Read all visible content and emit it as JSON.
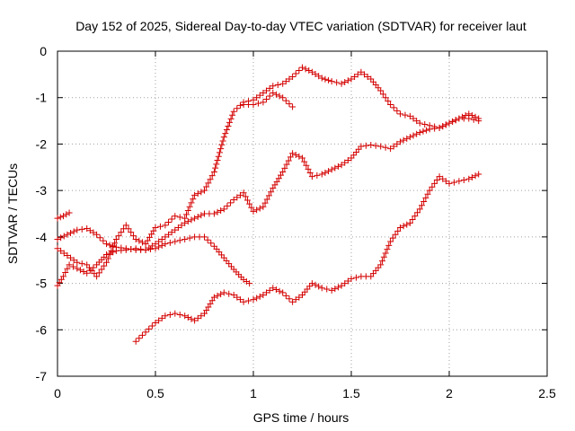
{
  "chart_data": {
    "type": "scatter",
    "title": "Day 152 of 2025, Sidereal Day-to-day VTEC variation (SDTVAR) for receiver laut",
    "xlabel": "GPS time / hours",
    "ylabel": "SDTVAR / TECUs",
    "xlim": [
      0,
      2.5
    ],
    "ylim": [
      -7,
      0
    ],
    "xticks": [
      "0",
      "0.5",
      "1",
      "1.5",
      "2",
      "2.5"
    ],
    "yticks": [
      "0",
      "-1",
      "-2",
      "-3",
      "-4",
      "-5",
      "-6",
      "-7"
    ],
    "grid": true,
    "marker": "+",
    "color": "#d40000",
    "series": [
      {
        "name": "series-1",
        "points": [
          [
            0.0,
            -3.6
          ],
          [
            0.03,
            -3.55
          ],
          [
            0.06,
            -3.48
          ]
        ]
      },
      {
        "name": "series-2",
        "points": [
          [
            0.0,
            -5.05
          ],
          [
            0.03,
            -4.85
          ],
          [
            0.06,
            -4.6
          ],
          [
            0.1,
            -4.68
          ],
          [
            0.15,
            -4.78
          ],
          [
            0.2,
            -4.6
          ],
          [
            0.25,
            -4.38
          ],
          [
            0.3,
            -4.3
          ],
          [
            0.35,
            -4.28
          ],
          [
            0.4,
            -4.25
          ],
          [
            0.45,
            -4.28
          ],
          [
            0.5,
            -4.25
          ],
          [
            0.55,
            -4.15
          ],
          [
            0.6,
            -4.1
          ],
          [
            0.65,
            -4.05
          ],
          [
            0.7,
            -4.0
          ],
          [
            0.75,
            -4.0
          ],
          [
            0.8,
            -4.2
          ],
          [
            0.85,
            -4.45
          ],
          [
            0.9,
            -4.7
          ],
          [
            0.95,
            -4.92
          ],
          [
            0.98,
            -5.0
          ]
        ]
      },
      {
        "name": "series-3",
        "points": [
          [
            0.0,
            -4.05
          ],
          [
            0.05,
            -3.95
          ],
          [
            0.1,
            -3.85
          ],
          [
            0.15,
            -3.82
          ],
          [
            0.2,
            -3.95
          ],
          [
            0.25,
            -4.15
          ],
          [
            0.3,
            -4.22
          ],
          [
            0.35,
            -4.25
          ],
          [
            0.4,
            -4.28
          ],
          [
            0.45,
            -4.28
          ],
          [
            0.5,
            -4.15
          ],
          [
            0.55,
            -4.0
          ],
          [
            0.6,
            -3.85
          ],
          [
            0.65,
            -3.7
          ],
          [
            0.7,
            -3.6
          ],
          [
            0.75,
            -3.5
          ],
          [
            0.8,
            -3.5
          ],
          [
            0.85,
            -3.4
          ],
          [
            0.9,
            -3.2
          ],
          [
            0.95,
            -3.05
          ],
          [
            1.0,
            -3.45
          ],
          [
            1.05,
            -3.35
          ],
          [
            1.1,
            -2.95
          ],
          [
            1.15,
            -2.6
          ],
          [
            1.2,
            -2.2
          ],
          [
            1.25,
            -2.3
          ],
          [
            1.3,
            -2.7
          ],
          [
            1.35,
            -2.65
          ],
          [
            1.4,
            -2.55
          ],
          [
            1.45,
            -2.45
          ],
          [
            1.5,
            -2.3
          ],
          [
            1.55,
            -2.05
          ],
          [
            1.6,
            -2.02
          ],
          [
            1.65,
            -2.05
          ],
          [
            1.7,
            -2.1
          ],
          [
            1.75,
            -1.95
          ],
          [
            1.8,
            -1.85
          ],
          [
            1.85,
            -1.75
          ],
          [
            1.9,
            -1.68
          ],
          [
            1.95,
            -1.65
          ],
          [
            2.0,
            -1.55
          ],
          [
            2.05,
            -1.45
          ],
          [
            2.1,
            -1.35
          ],
          [
            2.15,
            -1.45
          ]
        ]
      },
      {
        "name": "series-4",
        "points": [
          [
            0.0,
            -4.25
          ],
          [
            0.05,
            -4.4
          ],
          [
            0.1,
            -4.55
          ],
          [
            0.15,
            -4.6
          ],
          [
            0.2,
            -4.85
          ],
          [
            0.25,
            -4.55
          ],
          [
            0.3,
            -4.05
          ],
          [
            0.35,
            -3.75
          ],
          [
            0.4,
            -4.05
          ],
          [
            0.45,
            -4.15
          ],
          [
            0.5,
            -3.8
          ],
          [
            0.55,
            -3.75
          ],
          [
            0.6,
            -3.55
          ],
          [
            0.65,
            -3.6
          ],
          [
            0.7,
            -3.1
          ],
          [
            0.75,
            -3.0
          ],
          [
            0.8,
            -2.6
          ],
          [
            0.85,
            -1.85
          ],
          [
            0.9,
            -1.3
          ],
          [
            0.95,
            -1.1
          ],
          [
            1.0,
            -1.05
          ],
          [
            1.05,
            -0.9
          ],
          [
            1.1,
            -0.75
          ],
          [
            1.15,
            -0.7
          ],
          [
            1.2,
            -0.55
          ],
          [
            1.25,
            -0.35
          ],
          [
            1.3,
            -0.45
          ],
          [
            1.35,
            -0.58
          ],
          [
            1.4,
            -0.65
          ],
          [
            1.45,
            -0.7
          ],
          [
            1.5,
            -0.6
          ],
          [
            1.55,
            -0.45
          ],
          [
            1.6,
            -0.6
          ],
          [
            1.65,
            -0.85
          ],
          [
            1.7,
            -1.15
          ],
          [
            1.75,
            -1.35
          ],
          [
            1.8,
            -1.4
          ],
          [
            1.85,
            -1.55
          ],
          [
            1.9,
            -1.6
          ],
          [
            1.95,
            -1.65
          ],
          [
            2.0,
            -1.55
          ],
          [
            2.05,
            -1.45
          ],
          [
            2.1,
            -1.45
          ],
          [
            2.15,
            -1.5
          ]
        ]
      },
      {
        "name": "series-5",
        "points": [
          [
            0.95,
            -1.15
          ],
          [
            1.0,
            -1.15
          ],
          [
            1.05,
            -1.1
          ],
          [
            1.1,
            -0.9
          ],
          [
            1.15,
            -1.0
          ],
          [
            1.2,
            -1.2
          ]
        ]
      },
      {
        "name": "series-6",
        "points": [
          [
            0.4,
            -6.25
          ],
          [
            0.45,
            -6.05
          ],
          [
            0.5,
            -5.85
          ],
          [
            0.55,
            -5.7
          ],
          [
            0.6,
            -5.65
          ],
          [
            0.65,
            -5.7
          ],
          [
            0.7,
            -5.8
          ],
          [
            0.75,
            -5.65
          ],
          [
            0.8,
            -5.3
          ],
          [
            0.85,
            -5.2
          ],
          [
            0.9,
            -5.25
          ],
          [
            0.95,
            -5.4
          ],
          [
            1.0,
            -5.35
          ],
          [
            1.05,
            -5.25
          ],
          [
            1.1,
            -5.1
          ],
          [
            1.15,
            -5.2
          ],
          [
            1.2,
            -5.4
          ],
          [
            1.25,
            -5.25
          ],
          [
            1.3,
            -5.0
          ],
          [
            1.35,
            -5.1
          ],
          [
            1.4,
            -5.15
          ],
          [
            1.45,
            -5.05
          ],
          [
            1.5,
            -4.9
          ],
          [
            1.55,
            -4.85
          ],
          [
            1.6,
            -4.85
          ],
          [
            1.65,
            -4.6
          ],
          [
            1.7,
            -4.1
          ],
          [
            1.75,
            -3.8
          ],
          [
            1.8,
            -3.7
          ],
          [
            1.85,
            -3.4
          ],
          [
            1.9,
            -3.0
          ],
          [
            1.95,
            -2.7
          ],
          [
            2.0,
            -2.85
          ],
          [
            2.05,
            -2.8
          ],
          [
            2.1,
            -2.75
          ],
          [
            2.15,
            -2.65
          ]
        ]
      }
    ]
  }
}
